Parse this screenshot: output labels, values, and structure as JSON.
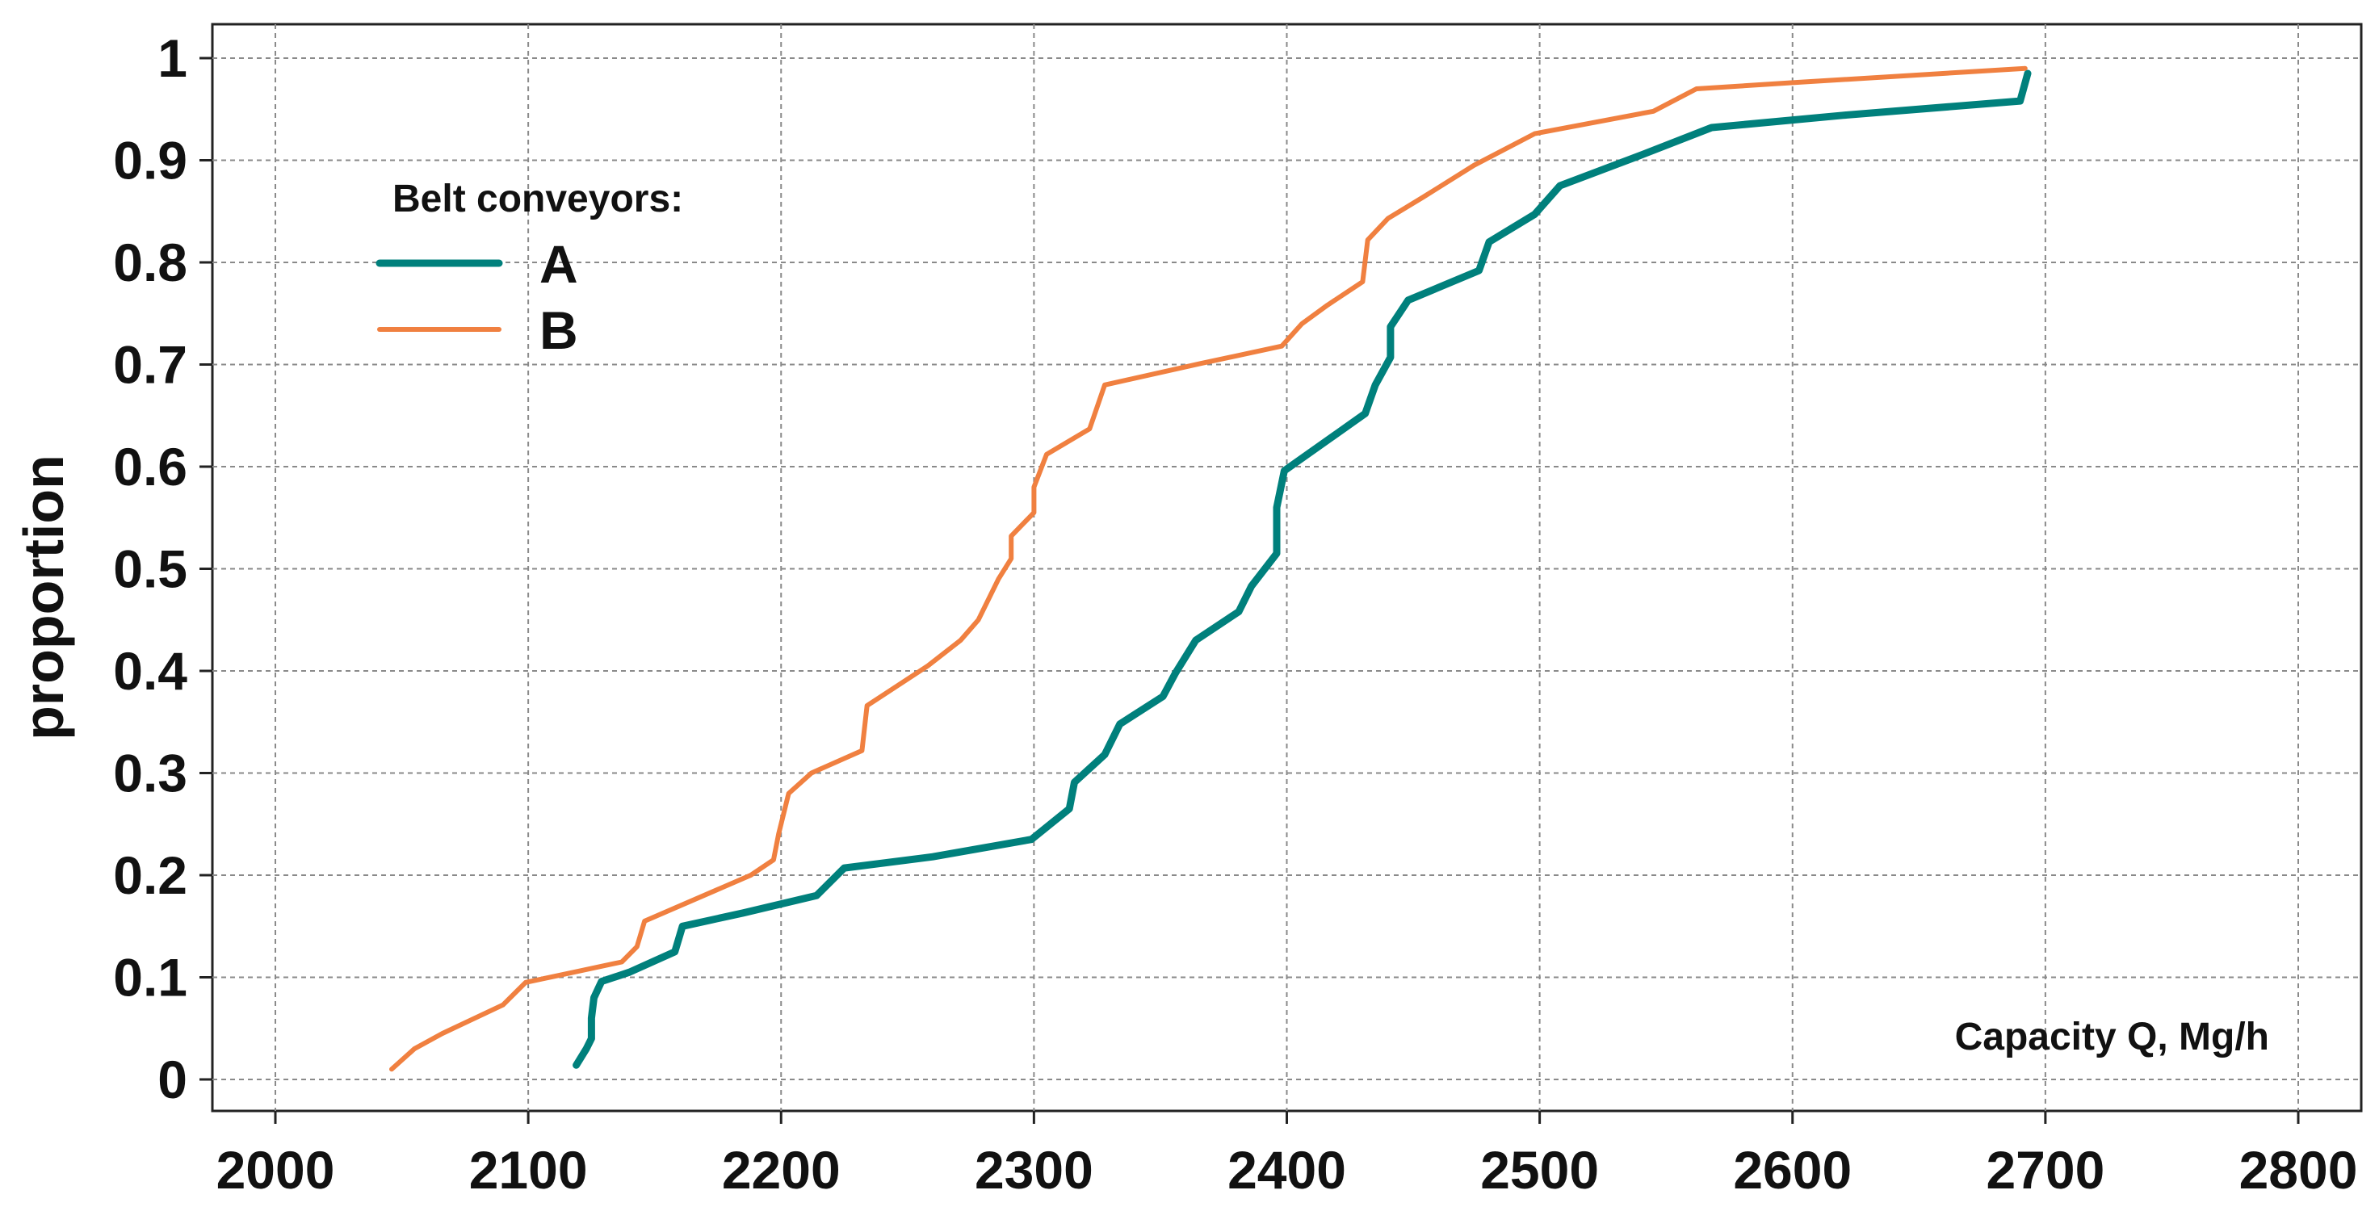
{
  "chart_data": {
    "type": "line",
    "title": "",
    "xlabel": "Capacity Q,  Mg/h",
    "ylabel": "proportion",
    "xlim": [
      2000,
      2800
    ],
    "ylim": [
      0,
      1
    ],
    "x_ticks": [
      2000,
      2100,
      2200,
      2300,
      2400,
      2500,
      2600,
      2700,
      2800
    ],
    "y_ticks": [
      0,
      0.1,
      0.2,
      0.3,
      0.4,
      0.5,
      0.6,
      0.7,
      0.8,
      0.9,
      1
    ],
    "y_tick_labels": [
      "0",
      "0.1",
      "0.2",
      "0.3",
      "0.4",
      "0.5",
      "0.6",
      "0.7",
      "0.8",
      "0.9",
      "1"
    ],
    "grid": true,
    "legend": {
      "title": "Belt conveyors:",
      "placement": "top-left"
    },
    "series": [
      {
        "name": "A",
        "color": "#00807c",
        "points": [
          [
            2119,
            0.014
          ],
          [
            2123,
            0.03
          ],
          [
            2125,
            0.04
          ],
          [
            2125,
            0.06
          ],
          [
            2126,
            0.08
          ],
          [
            2129,
            0.096
          ],
          [
            2140,
            0.105
          ],
          [
            2158,
            0.125
          ],
          [
            2161,
            0.15
          ],
          [
            2185,
            0.163
          ],
          [
            2214,
            0.18
          ],
          [
            2225,
            0.207
          ],
          [
            2260,
            0.218
          ],
          [
            2299,
            0.235
          ],
          [
            2314,
            0.265
          ],
          [
            2316,
            0.291
          ],
          [
            2328,
            0.318
          ],
          [
            2334,
            0.348
          ],
          [
            2351,
            0.375
          ],
          [
            2356,
            0.398
          ],
          [
            2364,
            0.43
          ],
          [
            2381,
            0.458
          ],
          [
            2386,
            0.483
          ],
          [
            2396,
            0.515
          ],
          [
            2396,
            0.56
          ],
          [
            2399,
            0.596
          ],
          [
            2431,
            0.652
          ],
          [
            2435,
            0.68
          ],
          [
            2441,
            0.707
          ],
          [
            2441,
            0.737
          ],
          [
            2448,
            0.763
          ],
          [
            2476,
            0.792
          ],
          [
            2480,
            0.82
          ],
          [
            2498,
            0.847
          ],
          [
            2508,
            0.875
          ],
          [
            2540,
            0.905
          ],
          [
            2568,
            0.932
          ],
          [
            2620,
            0.944
          ],
          [
            2690,
            0.958
          ],
          [
            2693,
            0.985
          ]
        ]
      },
      {
        "name": "B",
        "color": "#f08040",
        "points": [
          [
            2046,
            0.01
          ],
          [
            2055,
            0.03
          ],
          [
            2066,
            0.045
          ],
          [
            2090,
            0.073
          ],
          [
            2099,
            0.095
          ],
          [
            2118,
            0.105
          ],
          [
            2137,
            0.115
          ],
          [
            2143,
            0.13
          ],
          [
            2146,
            0.155
          ],
          [
            2188,
            0.2
          ],
          [
            2197,
            0.215
          ],
          [
            2199,
            0.24
          ],
          [
            2203,
            0.28
          ],
          [
            2212,
            0.3
          ],
          [
            2232,
            0.322
          ],
          [
            2234,
            0.366
          ],
          [
            2258,
            0.405
          ],
          [
            2271,
            0.43
          ],
          [
            2278,
            0.45
          ],
          [
            2286,
            0.49
          ],
          [
            2291,
            0.51
          ],
          [
            2291,
            0.532
          ],
          [
            2300,
            0.555
          ],
          [
            2300,
            0.58
          ],
          [
            2305,
            0.612
          ],
          [
            2322,
            0.637
          ],
          [
            2328,
            0.68
          ],
          [
            2366,
            0.701
          ],
          [
            2398,
            0.718
          ],
          [
            2406,
            0.74
          ],
          [
            2416,
            0.758
          ],
          [
            2430,
            0.781
          ],
          [
            2432,
            0.822
          ],
          [
            2440,
            0.843
          ],
          [
            2454,
            0.864
          ],
          [
            2474,
            0.895
          ],
          [
            2498,
            0.926
          ],
          [
            2545,
            0.948
          ],
          [
            2562,
            0.97
          ],
          [
            2600,
            0.976
          ],
          [
            2692,
            0.99
          ]
        ]
      }
    ]
  }
}
